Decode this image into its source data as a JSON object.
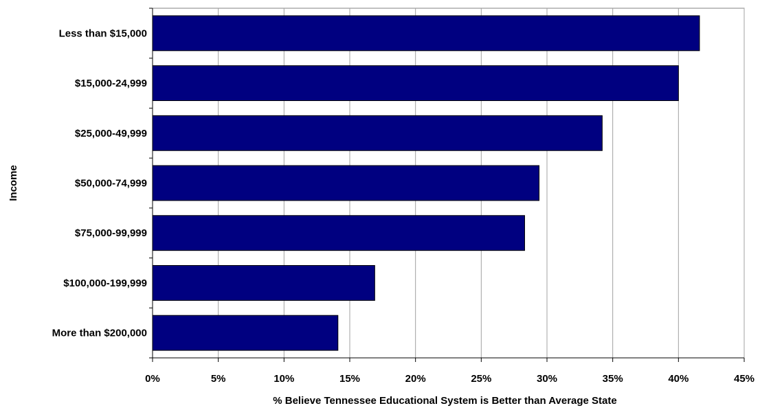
{
  "chart_data": {
    "type": "bar",
    "orientation": "horizontal",
    "title": "",
    "xlabel": "% Believe Tennessee Educational System is Better than Average State",
    "ylabel": "Income",
    "categories": [
      "Less than $15,000",
      "$15,000-24,999",
      "$25,000-49,999",
      "$50,000-74,999",
      "$75,000-99,999",
      "$100,000-199,999",
      "More than $200,000"
    ],
    "values": [
      41.6,
      40.0,
      34.2,
      29.4,
      28.3,
      16.9,
      14.1
    ],
    "xlim": [
      0,
      45
    ],
    "x_ticks": [
      "0%",
      "5%",
      "10%",
      "15%",
      "20%",
      "25%",
      "30%",
      "35%",
      "40%",
      "45%"
    ],
    "grid": "vertical",
    "legend": "none",
    "bar_color": "#000080"
  }
}
